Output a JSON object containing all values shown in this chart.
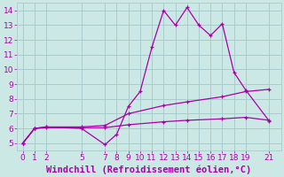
{
  "background_color": "#cce8e4",
  "grid_color": "#aacccc",
  "line_color": "#aa00aa",
  "x_ticks": [
    0,
    1,
    2,
    5,
    7,
    8,
    9,
    10,
    11,
    12,
    13,
    14,
    15,
    16,
    17,
    18,
    19,
    21
  ],
  "xlabel": "Windchill (Refroidissement éolien,°C)",
  "ylim": [
    4.5,
    14.5
  ],
  "xlim": [
    -0.5,
    22.0
  ],
  "yticks": [
    5,
    6,
    7,
    8,
    9,
    10,
    11,
    12,
    13,
    14
  ],
  "series1_x": [
    0,
    1,
    2,
    5,
    7,
    8,
    9,
    10,
    11,
    12,
    13,
    14,
    15,
    16,
    17,
    18,
    19,
    21
  ],
  "series1_y": [
    5.0,
    6.0,
    6.1,
    6.0,
    4.9,
    5.6,
    7.5,
    8.5,
    11.5,
    14.0,
    13.0,
    14.2,
    13.0,
    12.3,
    13.1,
    9.8,
    8.6,
    6.5
  ],
  "series2_x": [
    0,
    1,
    2,
    5,
    7,
    9,
    12,
    14,
    17,
    19,
    21
  ],
  "series2_y": [
    5.0,
    6.0,
    6.1,
    6.1,
    6.2,
    7.0,
    7.55,
    7.8,
    8.15,
    8.5,
    8.65
  ],
  "series3_x": [
    0,
    1,
    2,
    5,
    7,
    9,
    12,
    14,
    17,
    19,
    21
  ],
  "series3_y": [
    5.0,
    6.0,
    6.05,
    6.05,
    6.05,
    6.25,
    6.45,
    6.55,
    6.65,
    6.75,
    6.55
  ],
  "xlabel_fontsize": 7.5,
  "tick_fontsize": 6.5
}
